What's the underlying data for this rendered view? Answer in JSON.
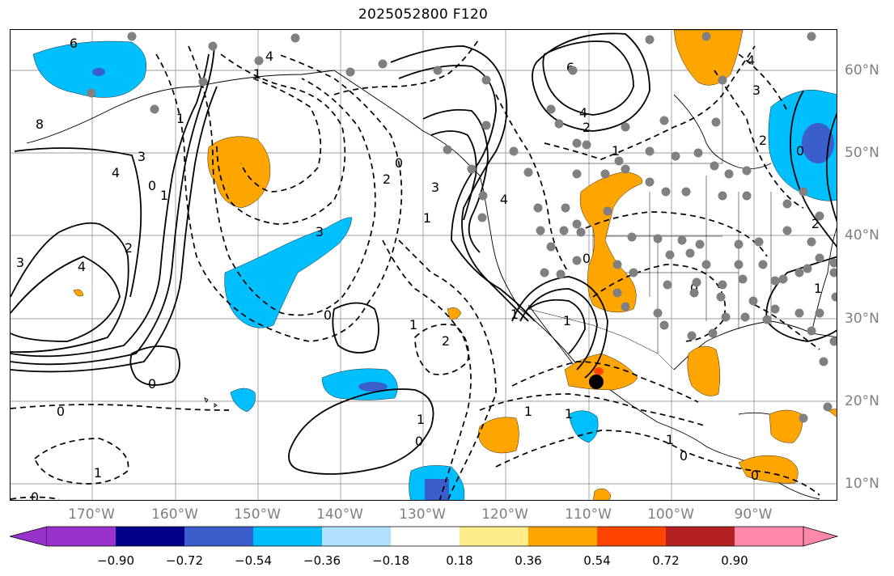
{
  "title": "2025052800 F120",
  "map": {
    "lat_labels": [
      "60°N",
      "50°N",
      "40°N",
      "30°N",
      "20°N",
      "10°N"
    ],
    "lon_labels": [
      "170°W",
      "160°W",
      "150°W",
      "140°W",
      "130°W",
      "120°W",
      "110°W",
      "100°W",
      "90°W"
    ],
    "contour_labels": {
      "solid": [
        "6",
        "6",
        "4",
        "3",
        "4",
        "2",
        "0",
        "1",
        "3",
        "4",
        "2",
        "1",
        "0",
        "1",
        "0",
        "1",
        "3",
        "4",
        "0",
        "0",
        "1",
        "0",
        "4",
        "3",
        "1",
        "2",
        "1",
        "0"
      ],
      "dashed": [
        "8",
        "4",
        "1",
        "3",
        "2",
        "1",
        "0",
        "0",
        "1",
        "2",
        "1",
        "1",
        "0",
        "0",
        "2",
        "0",
        "1",
        "1"
      ]
    },
    "grid_color": "#9e9e9e",
    "marker_color": "#808080",
    "highlight_marker_color": "#000000"
  },
  "colorbar": {
    "ticks": [
      "−0.90",
      "−0.72",
      "−0.54",
      "−0.36",
      "−0.18",
      "0.18",
      "0.36",
      "0.54",
      "0.72",
      "0.90"
    ],
    "colors": [
      "#9932cc",
      "#00008b",
      "#3a5fcd",
      "#00bfff",
      "#b0e2ff",
      "#ffffff",
      "#ffec8b",
      "#ffa500",
      "#ff4500",
      "#b22222",
      "#ff88aa"
    ]
  }
}
